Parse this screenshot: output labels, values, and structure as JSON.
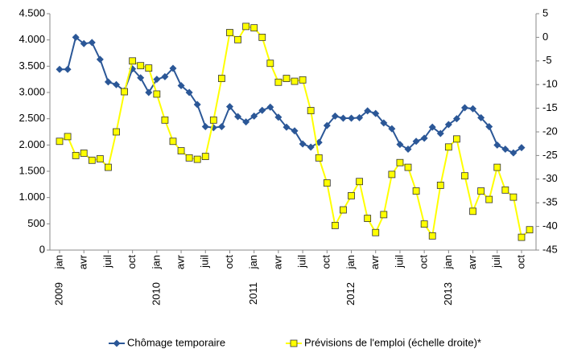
{
  "chart_data": {
    "type": "line",
    "categories": [
      "jan",
      null,
      null,
      "avr",
      null,
      null,
      "juil",
      null,
      null,
      "oct",
      null,
      null,
      "jan",
      null,
      null,
      "avr",
      null,
      null,
      "juil",
      null,
      null,
      "oct",
      null,
      null,
      "jan",
      null,
      null,
      "avr",
      null,
      null,
      "juil",
      null,
      null,
      "oct",
      null,
      null,
      "jan",
      null,
      null,
      "avr",
      null,
      null,
      "juil",
      null,
      null,
      "oct",
      null,
      null,
      "jan",
      null,
      null,
      "avr",
      null,
      null,
      "juil",
      null,
      null,
      "oct",
      null
    ],
    "years": [
      "2009",
      "2010",
      "2011",
      "2012",
      "2013"
    ],
    "ylim": [
      0,
      4500
    ],
    "yticks": [
      {
        "value": 4500,
        "label": "4.500"
      },
      {
        "value": 4000,
        "label": "4.000"
      },
      {
        "value": 3500,
        "label": "3.500"
      },
      {
        "value": 3000,
        "label": "3.000"
      },
      {
        "value": 2500,
        "label": "2.500"
      },
      {
        "value": 2000,
        "label": "2.000"
      },
      {
        "value": 1500,
        "label": "1.500"
      },
      {
        "value": 1000,
        "label": "1.000"
      },
      500,
      0
    ],
    "y2lim": [
      -45,
      5
    ],
    "y2ticks": [
      5,
      0,
      -5,
      -10,
      -15,
      -20,
      -25,
      -30,
      -35,
      -40,
      -45
    ],
    "grid": false,
    "legend": "bottom",
    "series": [
      {
        "name": "Chômage temporaire",
        "color": "#2b5797",
        "marker": "diamond",
        "values": [
          3440,
          3440,
          4050,
          3930,
          3950,
          3630,
          3200,
          3150,
          3030,
          3450,
          3280,
          3000,
          3250,
          3300,
          3460,
          3130,
          3000,
          2770,
          2350,
          2330,
          2350,
          2730,
          2540,
          2440,
          2550,
          2660,
          2720,
          2530,
          2340,
          2270,
          2020,
          1960,
          2050,
          2370,
          2550,
          2510,
          2510,
          2520,
          2650,
          2600,
          2420,
          2310,
          2010,
          1920,
          2070,
          2130,
          2340,
          2220,
          2390,
          2500,
          2710,
          2690,
          2520,
          2350,
          2000,
          1920,
          1850,
          1950,
          null
        ]
      },
      {
        "name": "Prévisions de l'emploi (échelle droite)*",
        "color": "#ffff00",
        "marker": "square",
        "axis": "y2",
        "values": [
          -22,
          -21,
          -25,
          -24.5,
          -26,
          -25.7,
          -27.5,
          -20,
          -11.5,
          -5,
          -6,
          -6.5,
          -12,
          -17.5,
          -22,
          -24,
          -25.5,
          -25.8,
          -25.2,
          -17.5,
          -8.7,
          1,
          -0.5,
          2.3,
          2,
          0,
          -5.5,
          -9.5,
          -8.7,
          -9.3,
          -9,
          -15.5,
          -25.5,
          -30.8,
          -39.8,
          -36.5,
          -33.5,
          -30.5,
          -38.3,
          -41.3,
          -37.5,
          -29,
          -26.5,
          -27.5,
          -32.5,
          -39.5,
          -42,
          -31.3,
          -23.2,
          -21.5,
          -29.3,
          -36.8,
          -32.5,
          -34.3,
          -27.5,
          -32.3,
          -33.8,
          -42.3,
          -40.7
        ]
      }
    ]
  }
}
